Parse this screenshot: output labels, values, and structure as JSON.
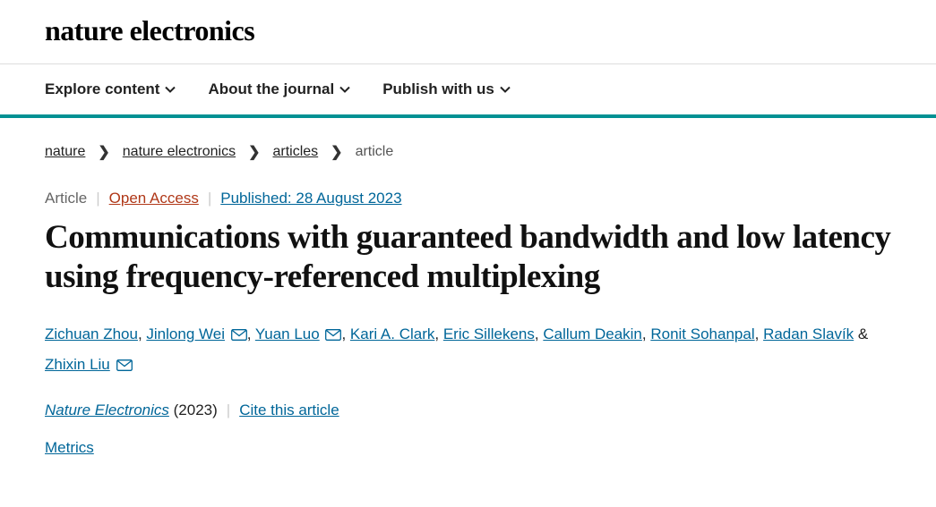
{
  "header": {
    "journal_logo": "nature electronics"
  },
  "nav": {
    "items": [
      {
        "label": "Explore content"
      },
      {
        "label": "About the journal"
      },
      {
        "label": "Publish with us"
      }
    ]
  },
  "breadcrumb": {
    "items": [
      {
        "label": "nature",
        "link": true
      },
      {
        "label": "nature electronics",
        "link": true
      },
      {
        "label": "articles",
        "link": true
      },
      {
        "label": "article",
        "link": false
      }
    ]
  },
  "article": {
    "category": "Article",
    "open_access": "Open Access",
    "published": "Published: 28 August 2023",
    "title": "Communications with guaranteed bandwidth and low latency using frequency-referenced multiplexing",
    "authors": [
      {
        "name": "Zichuan Zhou",
        "mail": false
      },
      {
        "name": "Jinlong Wei",
        "mail": true
      },
      {
        "name": "Yuan Luo",
        "mail": true
      },
      {
        "name": "Kari A. Clark",
        "mail": false
      },
      {
        "name": "Eric Sillekens",
        "mail": false
      },
      {
        "name": "Callum Deakin",
        "mail": false
      },
      {
        "name": "Ronit Sohanpal",
        "mail": false
      },
      {
        "name": "Radan Slavík",
        "mail": false
      },
      {
        "name": "Zhixin Liu",
        "mail": true
      }
    ],
    "journal": "Nature Electronics",
    "year": "(2023)",
    "cite": "Cite this article",
    "metrics": "Metrics"
  },
  "colors": {
    "accent": "#019193",
    "link": "#006699",
    "open_access": "#b03818"
  }
}
